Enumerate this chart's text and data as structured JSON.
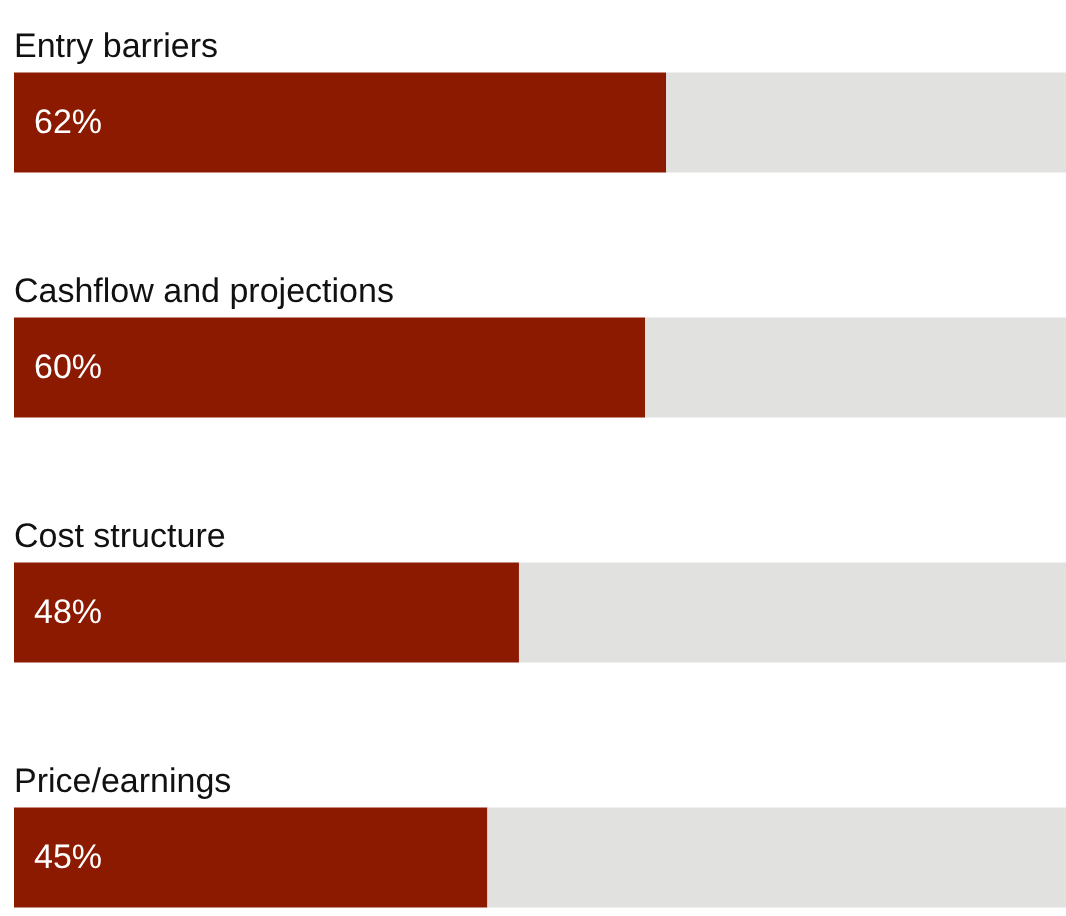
{
  "chart_data": {
    "type": "bar",
    "orientation": "horizontal",
    "stacked": true,
    "categories": [
      "Entry barriers",
      "Cashflow and projections",
      "Cost structure",
      "Price/earnings"
    ],
    "series": [
      {
        "color": "#8b1a00",
        "values": [
          62,
          60,
          48,
          45
        ],
        "value_labels": [
          "62%",
          "60%",
          "48%",
          "45%"
        ]
      },
      {
        "color": "#e1e1e0",
        "values": [
          38,
          40,
          52,
          55
        ]
      }
    ],
    "xlim": [
      0,
      100
    ],
    "tick_labels": false
  }
}
